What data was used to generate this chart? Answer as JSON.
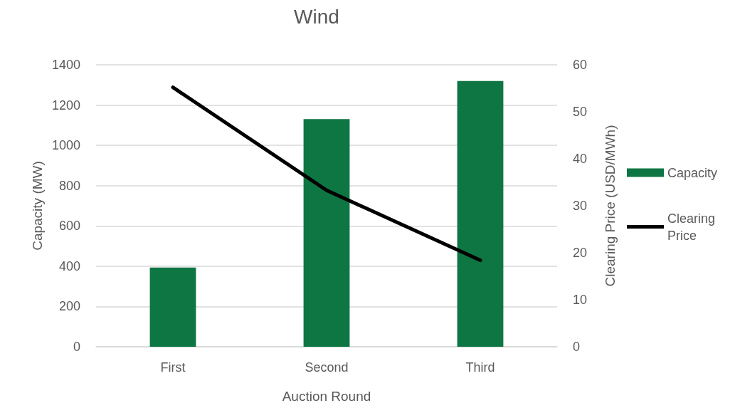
{
  "chart_data": {
    "type": "bar",
    "title": "Wind",
    "xlabel": "Auction Round",
    "ylabel": "Capacity (MW)",
    "y2label": "Clearing Price (USD/MWh)",
    "categories": [
      "First",
      "Second",
      "Third"
    ],
    "series": [
      {
        "name": "Capacity",
        "color": "#0e7642",
        "values": [
          393,
          1130,
          1320
        ]
      },
      {
        "name": "Clearing Price",
        "type": "line",
        "axis": "y2",
        "color": "#000000",
        "values": [
          55.2,
          33.3,
          18.4
        ]
      }
    ],
    "ylim": [
      0,
      1400
    ],
    "yticks": [
      0,
      200,
      400,
      600,
      800,
      1000,
      1200,
      1400
    ],
    "y2lim": [
      0,
      60
    ],
    "y2ticks": [
      0,
      10,
      20,
      30,
      40,
      50,
      60
    ],
    "grid": "y",
    "legend": "right",
    "marker": "none",
    "line_style": "solid"
  }
}
